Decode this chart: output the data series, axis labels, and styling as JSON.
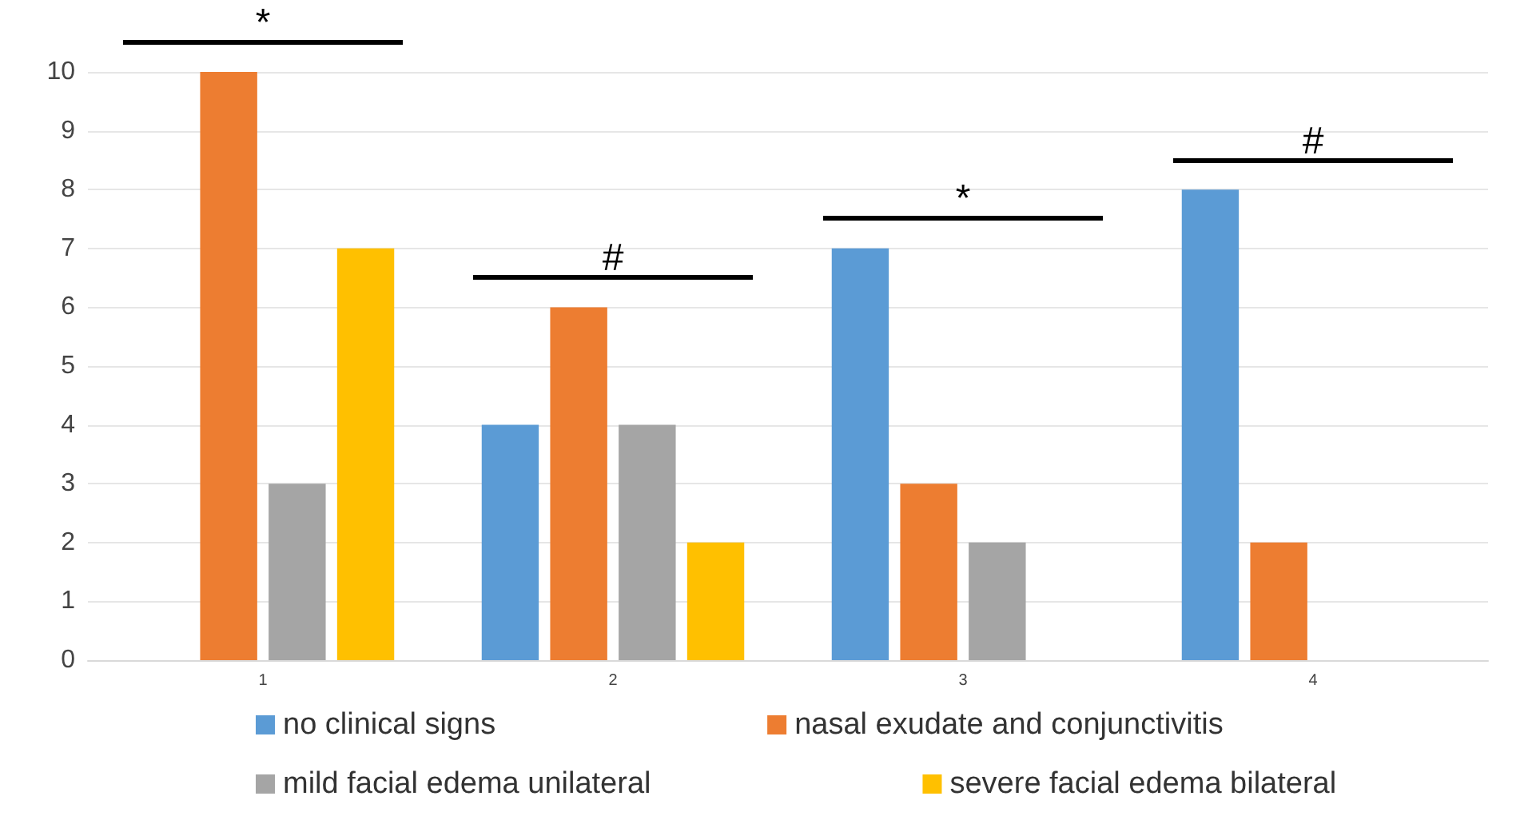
{
  "chart_data": {
    "type": "bar",
    "categories": [
      "1",
      "2",
      "3",
      "4"
    ],
    "series": [
      {
        "name": "no clinical signs",
        "color": "#5b9bd5",
        "values": [
          0,
          4,
          7,
          8
        ]
      },
      {
        "name": "nasal exudate and conjunctivitis",
        "color": "#ed7d31",
        "values": [
          10,
          6,
          3,
          2
        ]
      },
      {
        "name": "mild facial edema unilateral",
        "color": "#a5a5a5",
        "values": [
          3,
          4,
          2,
          0
        ]
      },
      {
        "name": "severe facial edema bilateral",
        "color": "#ffc000",
        "values": [
          7,
          2,
          0,
          0
        ]
      }
    ],
    "ylim": [
      0,
      10
    ],
    "yticks": [
      0,
      1,
      2,
      3,
      4,
      5,
      6,
      7,
      8,
      9,
      10
    ],
    "grid": "y",
    "legend": "bottom",
    "annotations": [
      "*",
      "#",
      "*",
      "#"
    ]
  }
}
